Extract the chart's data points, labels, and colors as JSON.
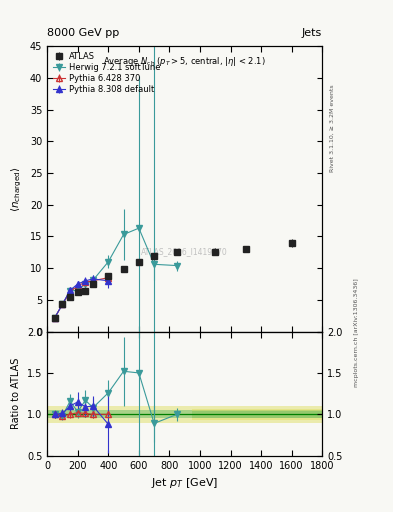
{
  "title_top": "8000 GeV pp",
  "title_top_right": "Jets",
  "watermark": "ATLAS_2016_I1419070",
  "ylabel_main": "\\langle n_{\\mathrm{charged}} \\rangle",
  "ylabel_ratio": "Ratio to ATLAS",
  "xlabel": "Jet $p_T$ [GeV]",
  "right_label_top": "Rivet 3.1.10, ≥ 3.2M events",
  "right_label_bottom": "mcplots.cern.ch [arXiv:1306.3436]",
  "ylim_main": [
    0,
    45
  ],
  "ylim_ratio": [
    0.5,
    2.0
  ],
  "xlim": [
    0,
    1800
  ],
  "atlas_x": [
    50,
    100,
    150,
    200,
    250,
    300,
    400,
    500,
    600,
    700,
    850,
    1100,
    1300,
    1600
  ],
  "atlas_y": [
    2.2,
    4.4,
    5.5,
    6.3,
    6.4,
    7.5,
    8.7,
    9.8,
    10.9,
    11.9,
    12.5,
    12.6,
    13.0,
    14.0
  ],
  "atlas_yerr": [
    0.1,
    0.2,
    0.2,
    0.2,
    0.2,
    0.3,
    0.3,
    0.4,
    0.4,
    0.5,
    0.5,
    0.5,
    0.5,
    0.6
  ],
  "herwig_x": [
    50,
    100,
    150,
    200,
    250,
    300,
    400,
    500,
    600,
    700,
    850
  ],
  "herwig_y": [
    2.2,
    4.3,
    6.4,
    6.5,
    7.5,
    8.1,
    11.0,
    15.3,
    16.3,
    10.6,
    10.4
  ],
  "herwig_yerr": [
    0.3,
    0.3,
    0.5,
    0.5,
    0.7,
    0.8,
    1.0,
    4.0,
    24.0,
    2.5,
    0.8
  ],
  "pythia6_x": [
    50,
    100,
    150,
    200,
    250,
    300,
    400
  ],
  "pythia6_y": [
    2.2,
    4.3,
    6.3,
    7.2,
    7.8,
    8.0,
    8.5
  ],
  "pythia6_yerr": [
    0.1,
    0.2,
    0.2,
    0.2,
    0.3,
    0.3,
    0.4
  ],
  "pythia8_x": [
    50,
    100,
    150,
    200,
    250,
    300,
    400
  ],
  "pythia8_y": [
    2.2,
    4.3,
    6.5,
    7.5,
    8.0,
    8.3,
    8.0
  ],
  "pythia8_yerr": [
    0.2,
    0.3,
    0.4,
    0.5,
    0.6,
    0.6,
    1.2
  ],
  "herwig_color": "#3a9a9a",
  "pythia6_color": "#cc3333",
  "pythia8_color": "#3333cc",
  "atlas_color": "#222222",
  "bg_color": "#f8f8f4",
  "green_band_color": "#66bb66",
  "yellow_band_color": "#dddd55",
  "ratio_herwig_x": [
    50,
    100,
    150,
    200,
    250,
    300,
    400,
    500,
    600,
    700,
    850
  ],
  "ratio_herwig_y": [
    1.0,
    0.98,
    1.16,
    1.03,
    1.17,
    1.08,
    1.26,
    1.52,
    1.5,
    0.89,
    1.0
  ],
  "ratio_herwig_yerr": [
    0.05,
    0.05,
    0.08,
    0.08,
    0.12,
    0.12,
    0.15,
    0.42,
    2.2,
    0.22,
    0.08
  ],
  "ratio_pythia6_x": [
    50,
    100,
    150,
    200,
    250,
    300,
    400
  ],
  "ratio_pythia6_y": [
    1.0,
    0.98,
    1.0,
    1.02,
    1.01,
    1.0,
    1.0
  ],
  "ratio_pythia6_yerr": [
    0.04,
    0.04,
    0.04,
    0.04,
    0.04,
    0.04,
    0.05
  ],
  "ratio_pythia8_x": [
    50,
    100,
    150,
    200,
    250,
    300,
    400
  ],
  "ratio_pythia8_y": [
    1.0,
    1.01,
    1.1,
    1.15,
    1.09,
    1.1,
    0.88
  ],
  "ratio_pythia8_yerr": [
    0.04,
    0.06,
    0.08,
    0.12,
    0.12,
    0.12,
    0.35
  ],
  "vertical_line_x": 700,
  "yticks_main": [
    0,
    5,
    10,
    15,
    20,
    25,
    30,
    35,
    40,
    45
  ],
  "yticks_ratio": [
    0.5,
    1.0,
    1.5,
    2.0
  ]
}
